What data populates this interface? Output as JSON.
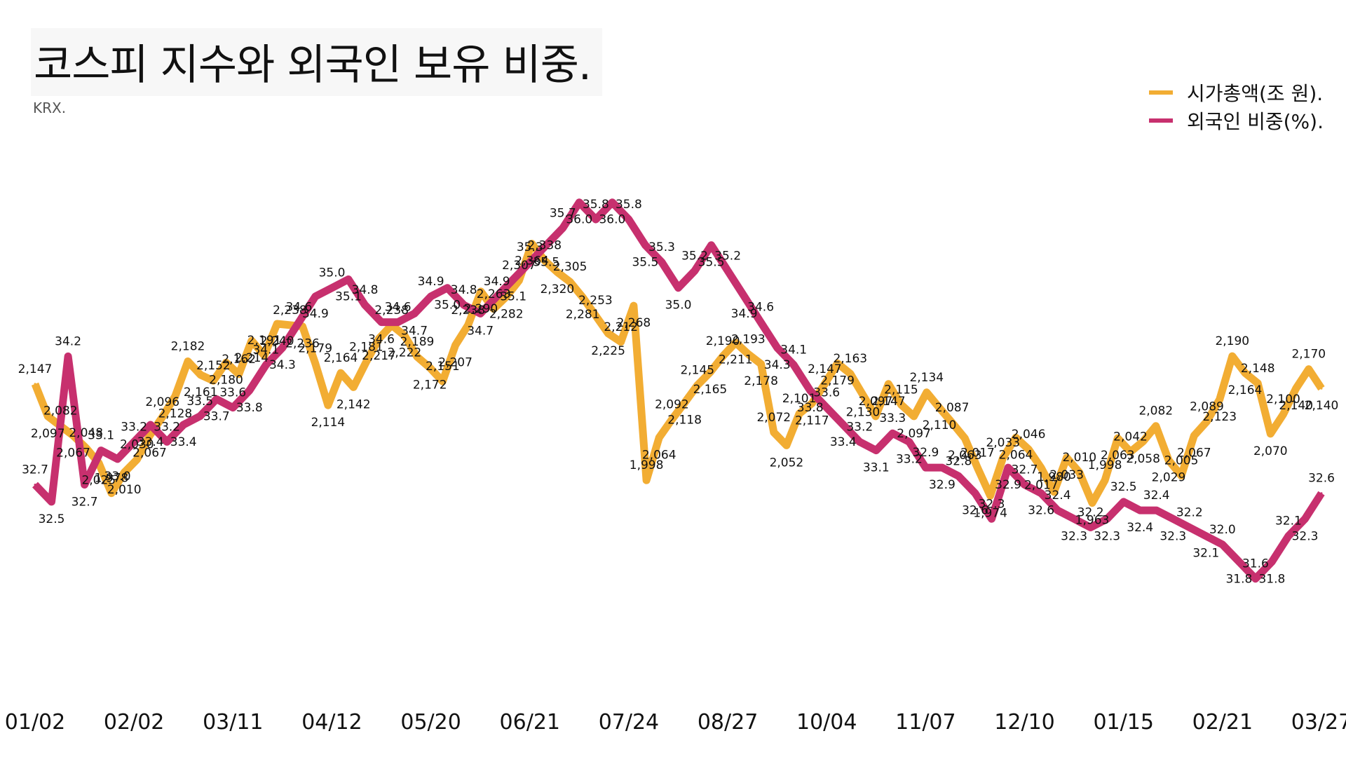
{
  "title": "코스피 지수와 외국인 보유 비중.",
  "source": "KRX.",
  "colors": {
    "market_cap": "#f2ad33",
    "foreign": "#c7306e"
  },
  "chart_data": {
    "type": "line",
    "x_ticks": [
      "01/02",
      "02/02",
      "03/11",
      "04/12",
      "05/20",
      "06/21",
      "07/24",
      "08/27",
      "10/04",
      "11/07",
      "12/10",
      "01/15",
      "02/21",
      "03/27"
    ],
    "series": [
      {
        "name": "시가총액(조 원).",
        "color_key": "market_cap",
        "ylim": [
          1700,
          2600
        ],
        "values": [
          2147,
          2097,
          2082,
          2067,
          2048,
          2025,
          1978,
          2010,
          2030,
          2067,
          2096,
          2128,
          2182,
          2161,
          2152,
          2180,
          2162,
          2214,
          2191,
          2240,
          2238,
          2236,
          2179,
          2114,
          2164,
          2142,
          2181,
          2217,
          2238,
          2222,
          2189,
          2172,
          2151,
          2207,
          2238,
          2290,
          2263,
          2282,
          2307,
          2364,
          2338,
          2320,
          2305,
          2281,
          2253,
          2225,
          2212,
          2268,
          1998,
          2064,
          2092,
          2118,
          2145,
          2165,
          2190,
          2211,
          2193,
          2178,
          2072,
          2052,
          2101,
          2117,
          2147,
          2179,
          2163,
          2130,
          2097,
          2147,
          2115,
          2097,
          2134,
          2110,
          2087,
          2063,
          2017,
          1974,
          2033,
          2064,
          2046,
          2017,
          1980,
          2033,
          2010,
          1963,
          1998,
          2063,
          2042,
          2058,
          2082,
          2029,
          2005,
          2067,
          2089,
          2123,
          2190,
          2164,
          2148,
          2070,
          2100,
          2140,
          2170,
          2140
        ],
        "value_labels": [
          "2,147",
          "2,097",
          "2,082",
          "2,067",
          "2,048",
          "2,025",
          "1,978",
          "2,010",
          "2,030",
          "2,067",
          "2,096",
          "2,128",
          "2,182",
          "2,161",
          "2,152",
          "2,180",
          "2,162",
          "2,214",
          "2,191",
          "2,240",
          "2,238",
          "2,236",
          "2,179",
          "2,114",
          "2,164",
          "2,142",
          "2,181",
          "2,217",
          "2,238",
          "2,222",
          "2,189",
          "2,172",
          "2,151",
          "2,207",
          "2,238",
          "2,290",
          "2,263",
          "2,282",
          "2,307",
          "2,364",
          "2,338",
          "2,320",
          "2,305",
          "2,281",
          "2,253",
          "2,225",
          "2,212",
          "2,268",
          "1,998",
          "2,064",
          "2,092",
          "2,118",
          "2,145",
          "2,165",
          "2,190",
          "2,211",
          "2,193",
          "2,178",
          "2,072",
          "2,052",
          "2,101",
          "2,117",
          "2,147",
          "2,179",
          "2,163",
          "2,130",
          "2,097",
          "2,147",
          "2,115",
          "2,097",
          "2,134",
          "2,110",
          "2,087",
          "2,063",
          "2,017",
          "1,974",
          "2,033",
          "2,064",
          "2,046",
          "2,017",
          "1,980",
          "2,033",
          "2,010",
          "1,963",
          "1,998",
          "2,063",
          "2,042",
          "2,058",
          "2,082",
          "2,029",
          "2,005",
          "2,067",
          "2,089",
          "2,123",
          "2,190",
          "2,164",
          "2,148",
          "2,070",
          "2,100",
          "2,140",
          "2,170",
          "2,140"
        ]
      },
      {
        "name": "외국인 비중(%).",
        "color_key": "foreign",
        "ylim": [
          30.5,
          37.3
        ],
        "values": [
          32.7,
          32.5,
          34.2,
          32.7,
          33.1,
          33.0,
          33.2,
          33.4,
          33.2,
          33.4,
          33.5,
          33.7,
          33.6,
          33.8,
          34.1,
          34.3,
          34.6,
          34.9,
          35.0,
          35.1,
          34.8,
          34.6,
          34.6,
          34.7,
          34.9,
          35.0,
          34.8,
          34.7,
          34.9,
          35.1,
          35.3,
          35.5,
          35.7,
          36.0,
          35.8,
          36.0,
          35.8,
          35.5,
          35.3,
          35.0,
          35.2,
          35.5,
          35.2,
          34.9,
          34.6,
          34.3,
          34.1,
          33.8,
          33.6,
          33.4,
          33.2,
          33.1,
          33.3,
          33.2,
          32.9,
          32.9,
          32.8,
          32.6,
          32.3,
          32.9,
          32.7,
          32.6,
          32.4,
          32.3,
          32.2,
          32.3,
          32.5,
          32.4,
          32.4,
          32.3,
          32.2,
          32.1,
          32.0,
          31.8,
          31.6,
          31.8,
          32.1,
          32.3,
          32.6
        ],
        "value_labels": [
          "32.7",
          "32.5",
          "34.2",
          "32.7",
          "33.1",
          "33.0",
          "33.2",
          "33.4",
          "33.2",
          "33.4",
          "33.5",
          "33.7",
          "33.6",
          "33.8",
          "34.1",
          "34.3",
          "34.6",
          "34.9",
          "35.0",
          "35.1",
          "34.8",
          "34.6",
          "34.6",
          "34.7",
          "34.9",
          "35.0",
          "34.8",
          "34.7",
          "34.9",
          "35.1",
          "35.3",
          "35.5",
          "35.7",
          "36.0",
          "35.8",
          "36.0",
          "35.8",
          "35.5",
          "35.3",
          "35.0",
          "35.2",
          "35.5",
          "35.2",
          "34.9",
          "34.6",
          "34.3",
          "34.1",
          "33.8",
          "33.6",
          "33.4",
          "33.2",
          "33.1",
          "33.3",
          "33.2",
          "32.9",
          "32.9",
          "32.8",
          "32.6",
          "32.3",
          "32.9",
          "32.7",
          "32.6",
          "32.4",
          "32.3",
          "32.2",
          "32.3",
          "32.5",
          "32.4",
          "32.4",
          "32.3",
          "32.2",
          "32.1",
          "32.0",
          "31.8",
          "31.6",
          "31.8",
          "32.1",
          "32.3",
          "32.6"
        ]
      }
    ],
    "legend_position": "top-right",
    "grid": false
  }
}
